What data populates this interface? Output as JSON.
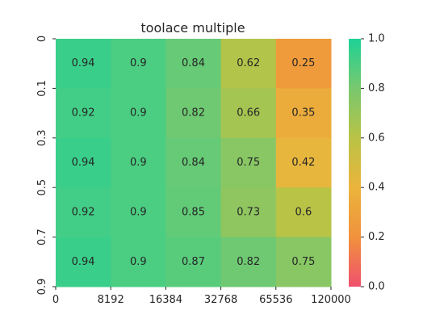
{
  "chart_data": {
    "type": "heatmap",
    "title": "toolace multiple",
    "xlabel": "",
    "ylabel": "",
    "x_tick_labels": [
      "0",
      "8192",
      "16384",
      "32768",
      "65536",
      "120000"
    ],
    "y_tick_labels": [
      "0",
      "0.1",
      "0.3",
      "0.5",
      "0.7",
      "0.9"
    ],
    "values": [
      [
        0.94,
        0.9,
        0.84,
        0.62,
        0.25
      ],
      [
        0.92,
        0.9,
        0.82,
        0.66,
        0.35
      ],
      [
        0.94,
        0.9,
        0.84,
        0.75,
        0.42
      ],
      [
        0.92,
        0.9,
        0.85,
        0.73,
        0.6
      ],
      [
        0.94,
        0.9,
        0.87,
        0.82,
        0.75
      ]
    ],
    "value_labels": [
      [
        "0.94",
        "0.9",
        "0.84",
        "0.62",
        "0.25"
      ],
      [
        "0.92",
        "0.9",
        "0.82",
        "0.66",
        "0.35"
      ],
      [
        "0.94",
        "0.9",
        "0.84",
        "0.75",
        "0.42"
      ],
      [
        "0.92",
        "0.9",
        "0.85",
        "0.73",
        "0.6"
      ],
      [
        "0.94",
        "0.9",
        "0.87",
        "0.82",
        "0.75"
      ]
    ],
    "colorbar": {
      "range": [
        0.0,
        1.0
      ],
      "tick_labels": [
        "0.0",
        "0.2",
        "0.4",
        "0.6",
        "0.8",
        "1.0"
      ],
      "colors": [
        "#f0506e",
        "#f0923c",
        "#ebb43c",
        "#b9c346",
        "#78c86e",
        "#1ed296"
      ]
    },
    "grid": false
  }
}
